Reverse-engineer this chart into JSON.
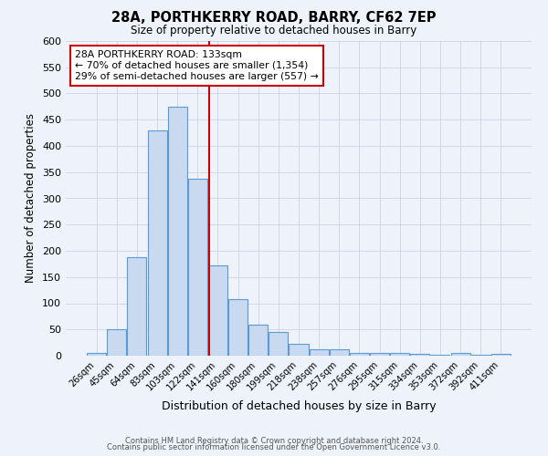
{
  "title_line1": "28A, PORTHKERRY ROAD, BARRY, CF62 7EP",
  "title_line2": "Size of property relative to detached houses in Barry",
  "xlabel": "Distribution of detached houses by size in Barry",
  "ylabel": "Number of detached properties",
  "categories": [
    "26sqm",
    "45sqm",
    "64sqm",
    "83sqm",
    "103sqm",
    "122sqm",
    "141sqm",
    "160sqm",
    "180sqm",
    "199sqm",
    "218sqm",
    "238sqm",
    "257sqm",
    "276sqm",
    "295sqm",
    "315sqm",
    "334sqm",
    "353sqm",
    "372sqm",
    "392sqm",
    "411sqm"
  ],
  "values": [
    5,
    50,
    188,
    430,
    475,
    338,
    173,
    108,
    60,
    45,
    22,
    12,
    13,
    6,
    5,
    5,
    3,
    2,
    6,
    2,
    3
  ],
  "bar_color": "#c9d9f0",
  "bar_edge_color": "#5b9bd5",
  "annotation_line_color": "#cc0000",
  "annotation_box_text": "28A PORTHKERRY ROAD: 133sqm\n← 70% of detached houses are smaller (1,354)\n29% of semi-detached houses are larger (557) →",
  "annotation_box_color": "#ffffff",
  "annotation_box_edge_color": "#cc0000",
  "ylim": [
    0,
    600
  ],
  "yticks": [
    0,
    50,
    100,
    150,
    200,
    250,
    300,
    350,
    400,
    450,
    500,
    550,
    600
  ],
  "grid_color": "#d0d8e8",
  "background_color": "#eef2fa",
  "footer_line1": "Contains HM Land Registry data © Crown copyright and database right 2024.",
  "footer_line2": "Contains public sector information licensed under the Open Government Licence v3.0."
}
